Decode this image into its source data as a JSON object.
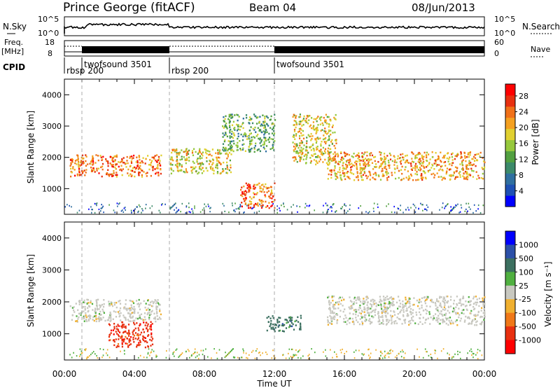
{
  "header": {
    "station": "Prince George (fitACF)",
    "beam": "Beam 04",
    "date": "08/Jun/2013"
  },
  "summary_panels": {
    "nsky_label": "N.Sky",
    "nsky_ticks": [
      "10^5",
      "10^0"
    ],
    "nsearch_label": "N.Search",
    "nsearch_ticks": [
      "10^5",
      "10^0"
    ],
    "freq_label_1": "Freq.",
    "freq_label_2": "[MHz]",
    "freq_ticks": [
      "18",
      "8"
    ],
    "nave_label": "Nave",
    "nave_ticks": [
      "60",
      "0"
    ],
    "cpid_label": "CPID",
    "cpid_segments": [
      {
        "name": "rbsp 200",
        "start_hour": 0.0
      },
      {
        "name": "twofsound 3501",
        "start_hour": 1.0
      },
      {
        "name": "rbsp 200",
        "start_hour": 6.0
      },
      {
        "name": "twofsound 3501",
        "start_hour": 12.0
      }
    ]
  },
  "chart_data": [
    {
      "type": "heatmap",
      "title": "",
      "xlabel": "",
      "ylabel": "Slant Range [km]",
      "xlim_hours": [
        0,
        24
      ],
      "ylim": [
        180,
        4500
      ],
      "yticks": [
        "1000",
        "2000",
        "3000",
        "4000"
      ],
      "colorbar_label": "Power [dB]",
      "colorbar_ticks": [
        "4",
        "8",
        "12",
        "16",
        "20",
        "24",
        "28"
      ],
      "colorbar_range": [
        0,
        31
      ],
      "colorbar_colors": [
        "#0000ff",
        "#1e50b4",
        "#2f6fa0",
        "#3c8a6a",
        "#52a040",
        "#96c83c",
        "#e0d030",
        "#f4a020",
        "#f07018",
        "#e83010",
        "#ff0000"
      ],
      "echo_bands": [
        {
          "range_km": [
            1400,
            2100
          ],
          "start_hour": 0.3,
          "end_hour": 5.5,
          "power_db": 24
        },
        {
          "range_km": [
            1500,
            2300
          ],
          "start_hour": 6.0,
          "end_hour": 9.5,
          "power_db": 20
        },
        {
          "range_km": [
            2200,
            3400
          ],
          "start_hour": 9.0,
          "end_hour": 12.0,
          "power_db": 12
        },
        {
          "range_km": [
            1800,
            3400
          ],
          "start_hour": 13.0,
          "end_hour": 15.5,
          "power_db": 18
        },
        {
          "range_km": [
            1300,
            2200
          ],
          "start_hour": 15.0,
          "end_hour": 24.0,
          "power_db": 22
        },
        {
          "range_km": [
            400,
            1200
          ],
          "start_hour": 10.0,
          "end_hour": 12.0,
          "power_db": 26
        }
      ]
    },
    {
      "type": "heatmap",
      "title": "",
      "xlabel": "Time UT",
      "ylabel": "Slant Range [km]",
      "xlim_hours": [
        0,
        24
      ],
      "xticks": [
        "00:00",
        "04:00",
        "08:00",
        "12:00",
        "16:00",
        "20:00",
        "00:00"
      ],
      "ylim": [
        180,
        4500
      ],
      "yticks": [
        "1000",
        "2000",
        "3000",
        "4000"
      ],
      "colorbar_label": "Velocity [m s⁻¹]",
      "colorbar_ticks": [
        "1000",
        "500",
        "100",
        "25",
        "-25",
        "-100",
        "-500",
        "-1000"
      ],
      "colorbar_colors": [
        "#0000ff",
        "#2c50a8",
        "#3c7060",
        "#50b040",
        "#c8c8c0",
        "#f0b030",
        "#f07818",
        "#e83010",
        "#ff0000"
      ],
      "echo_bands": [
        {
          "range_km": [
            1400,
            2100
          ],
          "start_hour": 0.3,
          "end_hour": 5.5,
          "velocity": 0
        },
        {
          "range_km": [
            600,
            1400
          ],
          "start_hour": 2.5,
          "end_hour": 5.0,
          "velocity": -500
        },
        {
          "range_km": [
            1100,
            1600
          ],
          "start_hour": 11.5,
          "end_hour": 13.5,
          "velocity": 100
        },
        {
          "range_km": [
            1300,
            2200
          ],
          "start_hour": 15.0,
          "end_hour": 24.0,
          "velocity": 0
        }
      ]
    }
  ]
}
